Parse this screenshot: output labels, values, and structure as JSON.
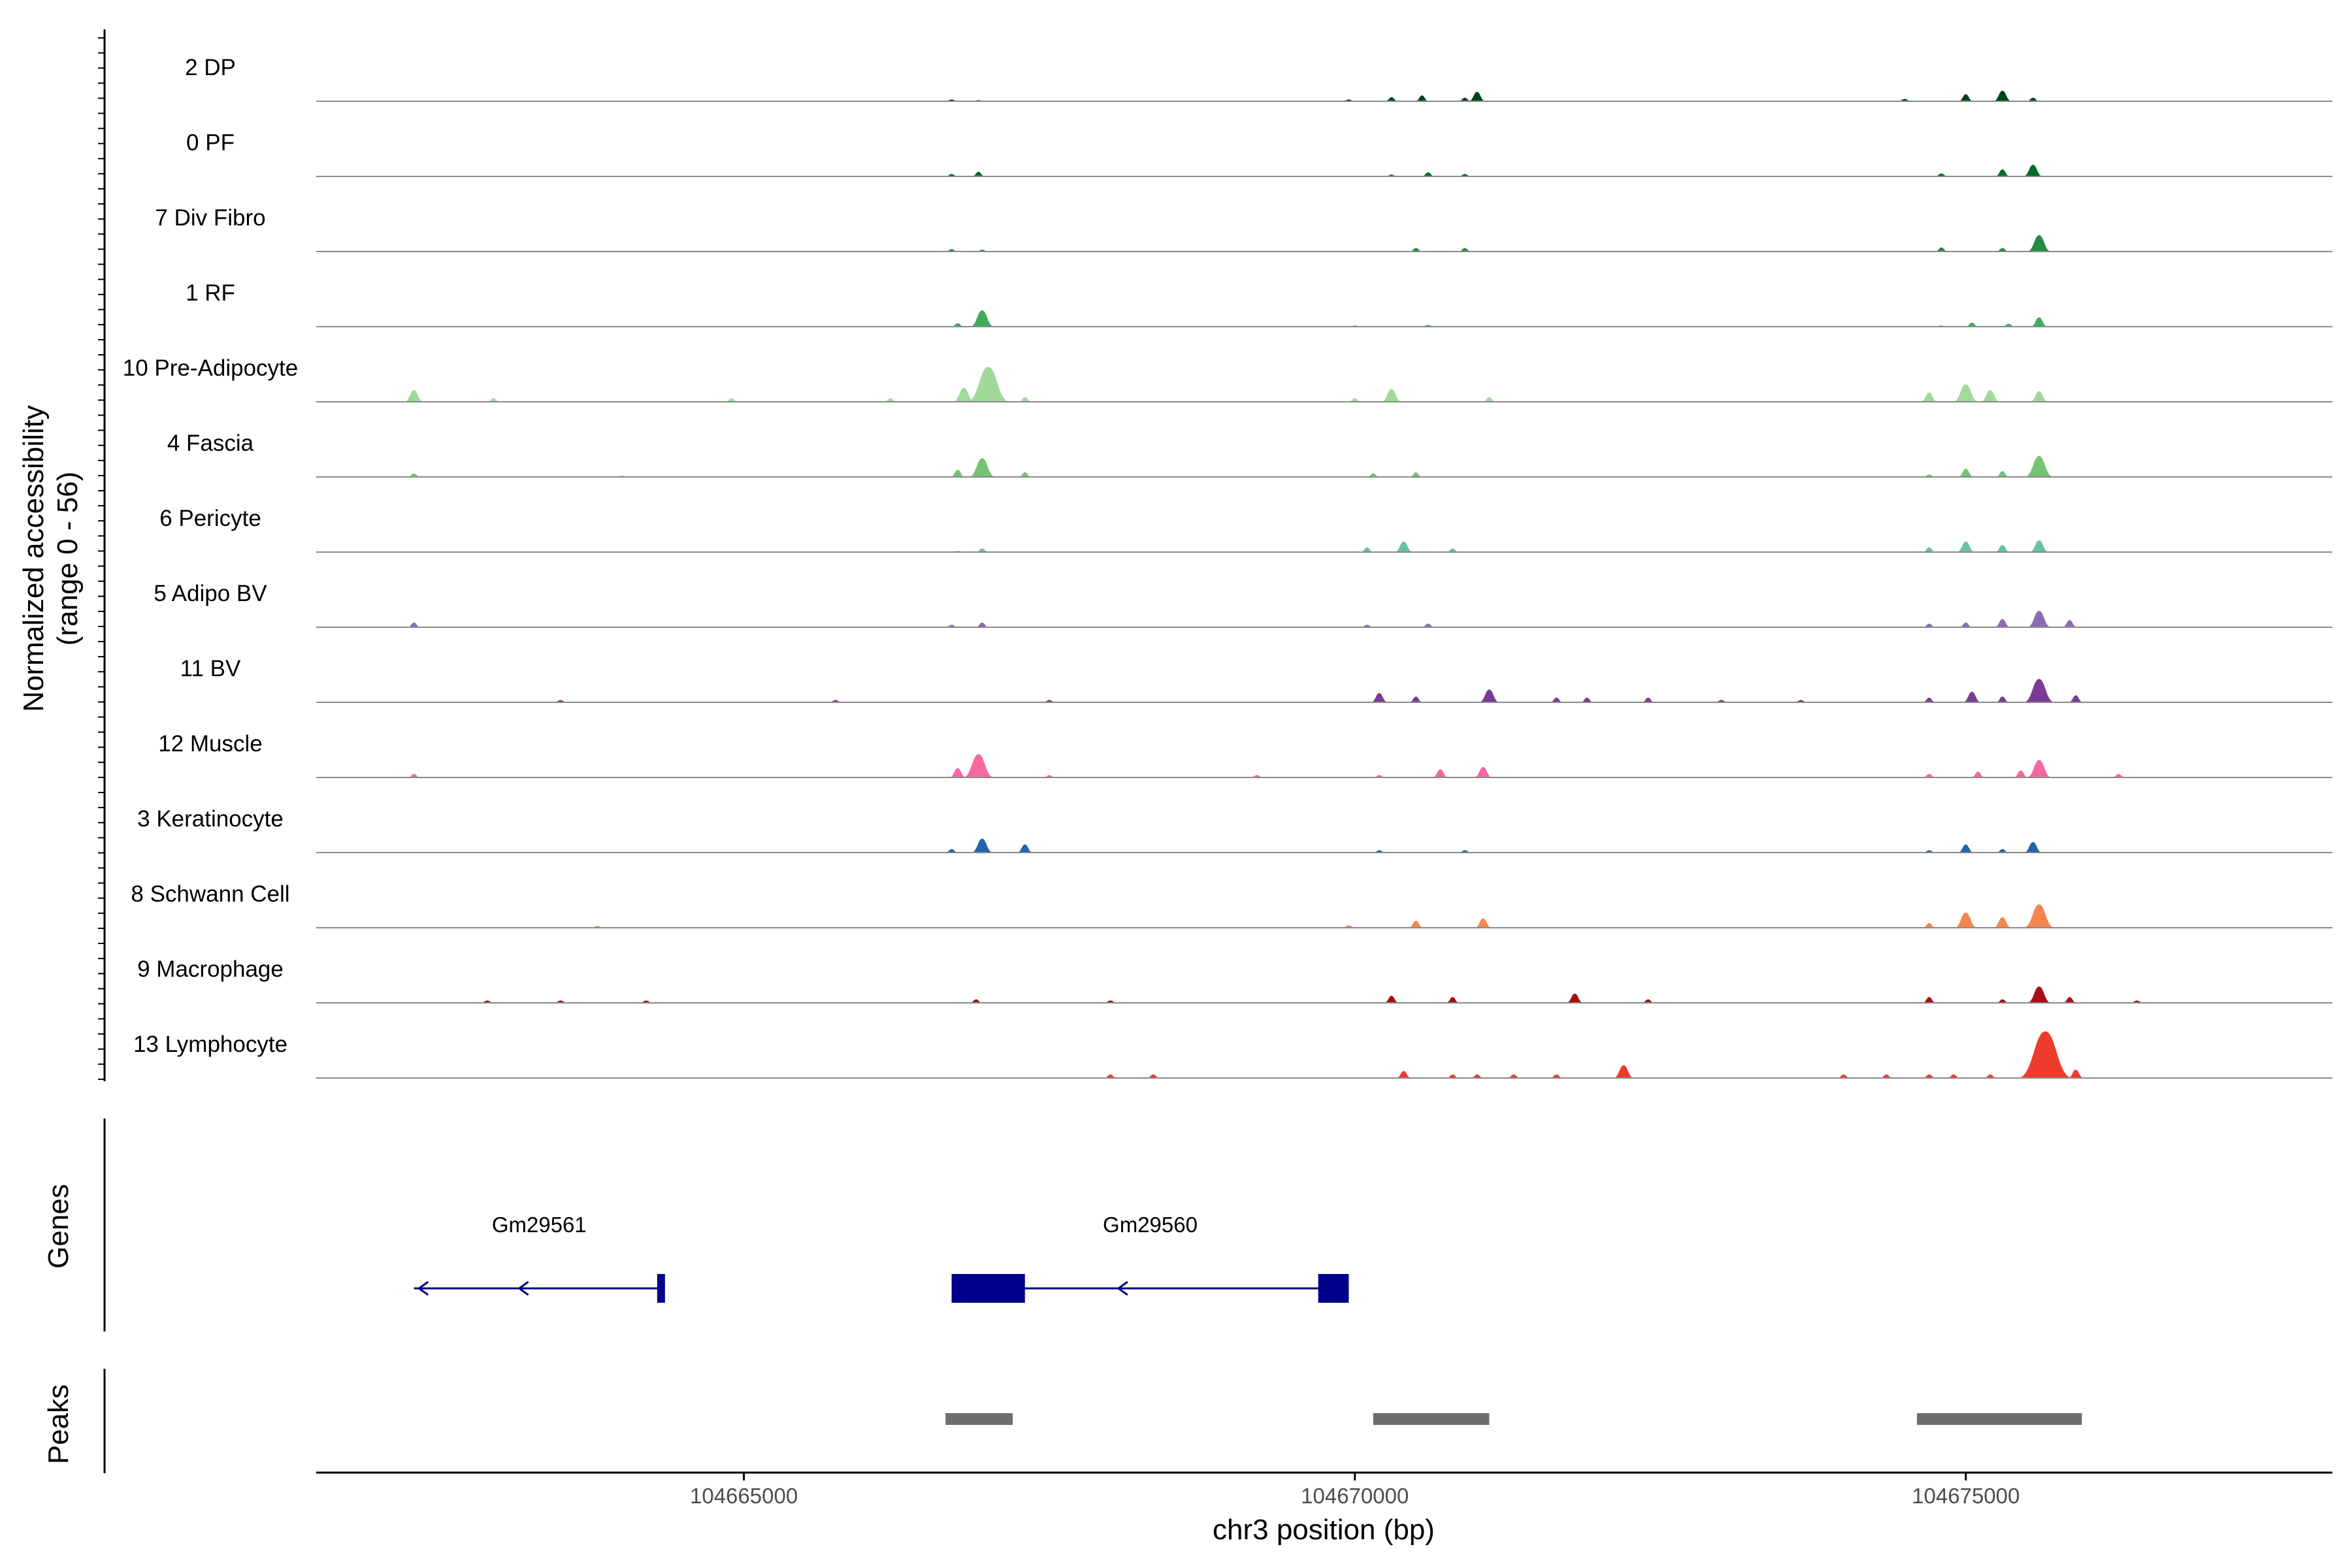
{
  "chart_data": {
    "type": "area",
    "ylabel": "Normalized accessibility",
    "ylabel_range": "(range 0 - 56)",
    "y_range": [
      0,
      56
    ],
    "xlabel": "chr3 position (bp)",
    "x_range": [
      104661500,
      104678000
    ],
    "x_ticks": [
      {
        "value": 104665000,
        "label": "104665000"
      },
      {
        "value": 104670000,
        "label": "104670000"
      },
      {
        "value": 104675000,
        "label": "104675000"
      }
    ],
    "grid": false,
    "legend": "none",
    "tracks": [
      {
        "label": "2 DP",
        "color": "#00441b",
        "x": [
          104664100,
          104666700,
          104666920,
          104669950,
          104670300,
          104670550,
          104670900,
          104671000,
          104674500,
          104675000,
          104675300,
          104675550
        ],
        "y": [
          0.5,
          1.5,
          1,
          1.5,
          3.5,
          5,
          3,
          8,
          2,
          6,
          9,
          3
        ]
      },
      {
        "label": "0 PF",
        "color": "#006d2c",
        "x": [
          104662500,
          104666700,
          104666920,
          104670300,
          104670600,
          104670900,
          104674800,
          104675300,
          104675550
        ],
        "y": [
          0.5,
          2,
          4,
          1.5,
          3.5,
          2,
          2.5,
          6,
          10
        ]
      },
      {
        "label": "7 Div Fibro",
        "color": "#238b45",
        "x": [
          104662300,
          104665150,
          104666700,
          104666950,
          104670500,
          104670900,
          104674800,
          104675300,
          104675600
        ],
        "y": [
          0.5,
          0.5,
          2,
          1.5,
          3,
          3,
          3.5,
          3,
          14
        ]
      },
      {
        "label": "1 RF",
        "color": "#41ab5d",
        "x": [
          104662300,
          104666750,
          104666950,
          104670000,
          104670600,
          104674800,
          104675050,
          104675350,
          104675600
        ],
        "y": [
          0.5,
          3,
          14,
          1,
          1.5,
          1,
          3.5,
          2.5,
          8
        ]
      },
      {
        "label": "10 Pre-Adipocyte",
        "color": "#a1d99b",
        "x": [
          104662300,
          104662950,
          104664900,
          104666200,
          104666800,
          104667000,
          104667300,
          104670000,
          104670300,
          104671100,
          104674700,
          104675000,
          104675200,
          104675600
        ],
        "y": [
          10,
          3,
          3,
          3,
          12,
          30,
          4,
          3,
          11,
          4,
          8,
          15,
          10,
          9
        ]
      },
      {
        "label": "4 Fascia",
        "color": "#74c476",
        "x": [
          104662300,
          104664000,
          104666750,
          104666950,
          104667300,
          104670150,
          104670500,
          104674700,
          104675000,
          104675300,
          104675600
        ],
        "y": [
          3,
          1,
          6,
          16,
          4,
          3,
          4,
          2,
          7,
          5,
          18
        ]
      },
      {
        "label": "6 Pericyte",
        "color": "#66c2a4",
        "x": [
          104666750,
          104666950,
          104670100,
          104670400,
          104670800,
          104674700,
          104675000,
          104675300,
          104675600
        ],
        "y": [
          1,
          3,
          4,
          9,
          3,
          4,
          9,
          6,
          10
        ]
      },
      {
        "label": "5 Adipo BV",
        "color": "#8c6bb1",
        "x": [
          104662300,
          104666700,
          104666950,
          104670100,
          104670600,
          104674700,
          104675000,
          104675300,
          104675600,
          104675850
        ],
        "y": [
          4,
          2,
          4,
          2,
          3,
          3,
          4,
          7,
          14,
          6
        ]
      },
      {
        "label": "11 BV",
        "color": "#7a3b96",
        "x": [
          104663500,
          104665750,
          104667500,
          104670200,
          104670500,
          104671100,
          104671650,
          104671900,
          104672400,
          104673000,
          104673650,
          104674700,
          104675050,
          104675300,
          104675600,
          104675900
        ],
        "y": [
          2,
          2,
          2,
          8,
          5,
          11,
          4,
          4,
          4,
          2,
          2,
          4,
          9,
          5,
          20,
          6
        ]
      },
      {
        "label": "12 Muscle",
        "color": "#f768a1",
        "x": [
          104662300,
          104666750,
          104666920,
          104667500,
          104669200,
          104670200,
          104670700,
          104671050,
          104674700,
          104675100,
          104675450,
          104675600,
          104676250
        ],
        "y": [
          3,
          8,
          20,
          2,
          2,
          2,
          7,
          9,
          3,
          5,
          6,
          15,
          3
        ]
      },
      {
        "label": "3 Keratinocyte",
        "color": "#2166ac",
        "x": [
          104662300,
          104666700,
          104666950,
          104667300,
          104670200,
          104670900,
          104674700,
          104675000,
          104675300,
          104675550
        ],
        "y": [
          0.5,
          3,
          12,
          7,
          2,
          2,
          2,
          7,
          3,
          9
        ]
      },
      {
        "label": "8 Schwann Cell",
        "color": "#f4874f",
        "x": [
          104662300,
          104663800,
          104666900,
          104669950,
          104670500,
          104671050,
          104674700,
          104675000,
          104675300,
          104675600
        ],
        "y": [
          0.5,
          1.5,
          0.5,
          2,
          6,
          8,
          4,
          13,
          9,
          20
        ]
      },
      {
        "label": "9 Macrophage",
        "color": "#a50f15",
        "x": [
          104662900,
          104663500,
          104664200,
          104666900,
          104668000,
          104670300,
          104670800,
          104671800,
          104672400,
          104674700,
          104675300,
          104675600,
          104675850,
          104676400
        ],
        "y": [
          2,
          2,
          2,
          3,
          2,
          6,
          5,
          8,
          3,
          5,
          3,
          14,
          5,
          2
        ]
      },
      {
        "label": "13 Lymphocyte",
        "color": "#ef3b2c",
        "x": [
          104668000,
          104668350,
          104670400,
          104670800,
          104671000,
          104671300,
          104671650,
          104672200,
          104674000,
          104674350,
          104674700,
          104674900,
          104675200,
          104675550,
          104675650,
          104675900
        ],
        "y": [
          3,
          3,
          6,
          3,
          3,
          3,
          3,
          11,
          3,
          3,
          3,
          3,
          3,
          10,
          40,
          7
        ]
      }
    ],
    "genes": [
      {
        "name": "Gm29561",
        "strand": "-",
        "start": 104662300,
        "end": 104664350,
        "exons": [
          [
            104664290,
            104664350
          ]
        ]
      },
      {
        "name": "Gm29560",
        "strand": "-",
        "start": 104666700,
        "end": 104669950,
        "exons": [
          [
            104666700,
            104667300
          ],
          [
            104669700,
            104669950
          ]
        ]
      }
    ],
    "peaks": [
      {
        "start": 104666650,
        "end": 104667200
      },
      {
        "start": 104670150,
        "end": 104671100
      },
      {
        "start": 104674600,
        "end": 104675950
      }
    ],
    "panel_labels": {
      "genes": "Genes",
      "peaks": "Peaks"
    }
  }
}
